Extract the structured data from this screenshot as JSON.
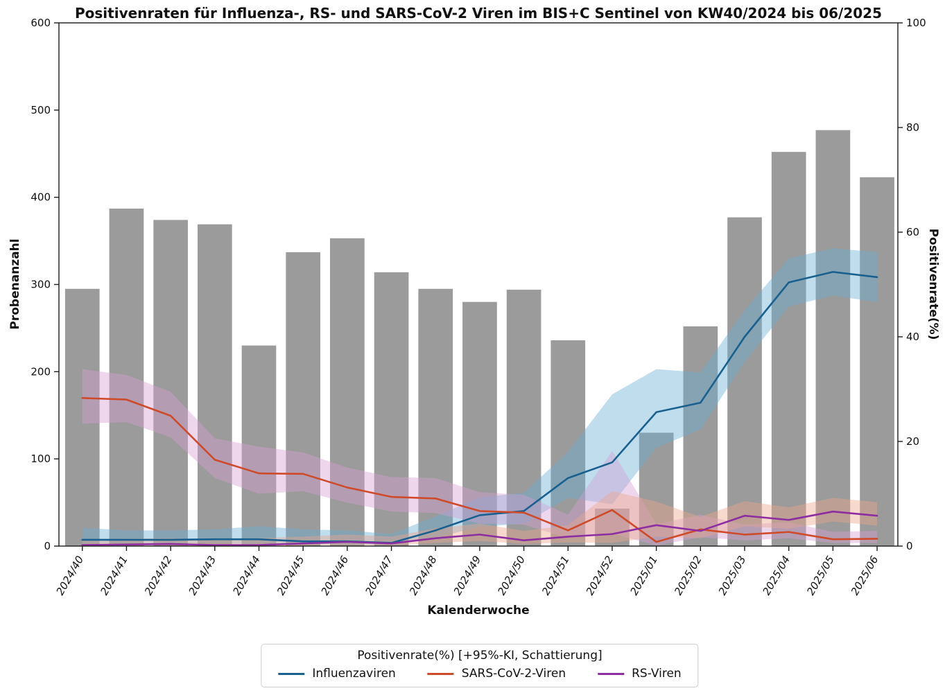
{
  "title": "Positivenraten für Influenza-, RS- und SARS-CoV-2 Viren im BIS+C Sentinel von KW40/2024 bis 06/2025",
  "axes": {
    "left_label": "Probenanzahl",
    "right_label": "Positivenrate(%)",
    "x_label": "Kalenderwoche",
    "left_ticks": [
      0,
      100,
      200,
      300,
      400,
      500,
      600
    ],
    "right_ticks": [
      0,
      20,
      40,
      60,
      80,
      100
    ],
    "left_ylim": [
      0,
      600
    ],
    "right_ylim": [
      0,
      100
    ]
  },
  "legend": {
    "title": "Positivenrate(%) [+95%-KI, Schattierung]",
    "items": [
      {
        "label": "Influenzaviren",
        "color": "#17608f"
      },
      {
        "label": "SARS-CoV-2-Viren",
        "color": "#cf4a28"
      },
      {
        "label": "RS-Viren",
        "color": "#8d2da2"
      }
    ]
  },
  "colors": {
    "bar": "#9b9b9b",
    "spine": "#1a1a1a",
    "tick_text": "#111111",
    "influenza": "#17608f",
    "sars": "#cf4a28",
    "rs": "#8d2da2",
    "influenza_band": "rgba(106,174,214,0.42)",
    "sars_band": "rgba(214,160,212,0.42)",
    "rs_band": "rgba(235,165,138,0.42)"
  },
  "chart_data": {
    "type": "bar",
    "note": "gray bars = Probenanzahl (left axis); lines = Positivenrate % (right axis) with 95% CI shading",
    "categories": [
      "2024/40",
      "2024/41",
      "2024/42",
      "2024/43",
      "2024/44",
      "2024/45",
      "2024/46",
      "2024/47",
      "2024/48",
      "2024/49",
      "2024/50",
      "2024/51",
      "2024/52",
      "2025/01",
      "2025/02",
      "2025/03",
      "2025/04",
      "2025/05",
      "2025/06"
    ],
    "bars": {
      "name": "Probenanzahl",
      "values": [
        295,
        387,
        374,
        369,
        230,
        337,
        353,
        314,
        295,
        280,
        294,
        236,
        43,
        130,
        252,
        377,
        452,
        477,
        423
      ]
    },
    "series": [
      {
        "name": "Influenzaviren",
        "color_key": "influenza",
        "band_key": "influenza_band",
        "values": [
          1.2,
          1.2,
          1.2,
          1.3,
          1.3,
          0.9,
          0.9,
          0.6,
          3.0,
          5.9,
          6.7,
          13.0,
          16.0,
          25.6,
          27.4,
          40.0,
          50.4,
          52.4,
          51.4
        ],
        "ci_low": [
          0.4,
          0.5,
          0.5,
          0.5,
          0.4,
          0.3,
          0.3,
          0.2,
          1.6,
          3.7,
          4.3,
          9.2,
          8.0,
          18.8,
          22.3,
          35.2,
          45.8,
          47.9,
          46.6
        ],
        "ci_high": [
          3.5,
          3.0,
          3.0,
          3.2,
          3.8,
          3.2,
          3.0,
          2.3,
          5.7,
          9.3,
          10.2,
          18.0,
          29.0,
          33.8,
          33.2,
          45.1,
          55.0,
          56.9,
          56.2
        ]
      },
      {
        "name": "SARS-CoV-2-Viren",
        "color_key": "sars",
        "band_key": "sars_band",
        "values": [
          28.3,
          28.0,
          24.9,
          16.5,
          13.9,
          13.8,
          11.2,
          9.4,
          9.1,
          6.7,
          6.4,
          3.0,
          6.9,
          0.8,
          3.2,
          2.2,
          2.7,
          1.3,
          1.4
        ],
        "ci_low": [
          23.4,
          23.7,
          20.8,
          13.0,
          10.0,
          10.5,
          8.3,
          6.6,
          6.3,
          4.3,
          4.1,
          1.5,
          2.4,
          0.1,
          1.7,
          1.1,
          1.5,
          0.6,
          0.6
        ],
        "ci_high": [
          33.8,
          32.7,
          29.5,
          20.6,
          19.0,
          17.9,
          15.0,
          13.2,
          13.0,
          10.3,
          9.8,
          6.0,
          18.2,
          4.2,
          6.0,
          4.1,
          4.6,
          2.7,
          2.9
        ]
      },
      {
        "name": "RS-Viren",
        "color_key": "rs",
        "band_key": "rs_band",
        "values": [
          0.2,
          0.3,
          0.4,
          0.2,
          0.2,
          0.5,
          0.8,
          0.5,
          1.5,
          2.2,
          1.1,
          1.8,
          2.3,
          4.0,
          2.9,
          5.8,
          5.0,
          6.6,
          5.8
        ],
        "ci_low": [
          0.0,
          0.1,
          0.1,
          0.0,
          0.0,
          0.1,
          0.2,
          0.1,
          0.6,
          1.0,
          0.4,
          0.7,
          0.6,
          1.8,
          1.5,
          3.8,
          3.3,
          4.7,
          3.9
        ],
        "ci_high": [
          1.2,
          1.4,
          1.5,
          1.2,
          1.5,
          1.8,
          2.2,
          1.8,
          3.4,
          4.3,
          2.9,
          4.0,
          10.5,
          8.5,
          5.6,
          8.6,
          7.4,
          9.2,
          8.4
        ]
      }
    ]
  }
}
